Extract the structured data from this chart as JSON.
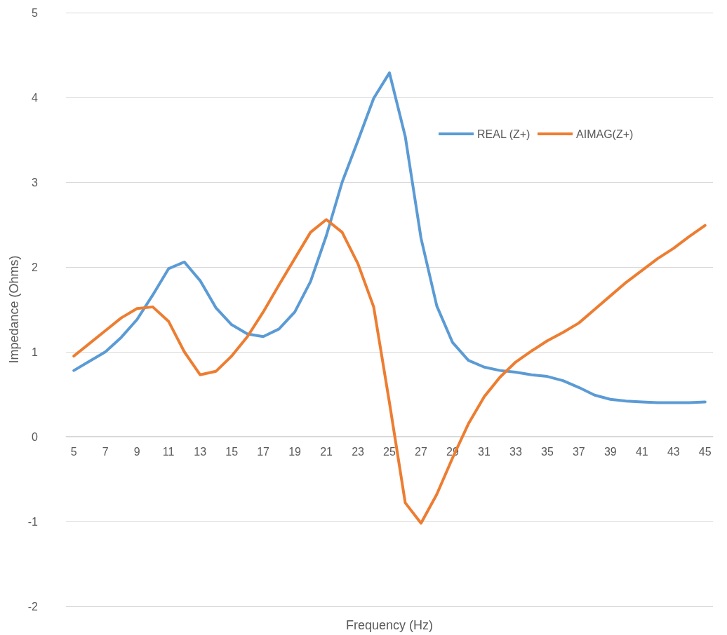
{
  "chart_data": {
    "type": "line",
    "xlabel": "Frequency (Hz)",
    "ylabel": "Impedance (Ohms)",
    "categories": [
      "5",
      null,
      "7",
      null,
      "9",
      null,
      "11",
      null,
      "13",
      null,
      "15",
      null,
      "17",
      null,
      "19",
      null,
      "21",
      null,
      "23",
      null,
      "25",
      null,
      "27",
      null,
      "29",
      null,
      "31",
      null,
      "33",
      null,
      "35",
      null,
      "37",
      null,
      "39",
      null,
      "41",
      null,
      "43",
      null,
      "45"
    ],
    "series": [
      {
        "name": "REAL (Z+)",
        "color": "#5b9bd5",
        "values": [
          0.78,
          0.89,
          1.0,
          1.17,
          1.38,
          1.67,
          1.98,
          2.06,
          1.84,
          1.52,
          1.32,
          1.21,
          1.18,
          1.27,
          1.47,
          1.83,
          2.37,
          3.0,
          3.49,
          3.99,
          4.29,
          3.54,
          2.34,
          1.54,
          1.11,
          0.9,
          0.82,
          0.78,
          0.76,
          0.73,
          0.71,
          0.66,
          0.58,
          0.49,
          0.44,
          0.42,
          0.41,
          0.4,
          0.4,
          0.4,
          0.41
        ]
      },
      {
        "name": "AIMAG(Z+)",
        "color": "#ed7d31",
        "values": [
          0.95,
          1.1,
          1.25,
          1.4,
          1.51,
          1.53,
          1.36,
          1.0,
          0.73,
          0.77,
          0.95,
          1.18,
          1.47,
          1.79,
          2.1,
          2.41,
          2.56,
          2.41,
          2.04,
          1.53,
          0.4,
          -0.78,
          -1.02,
          -0.68,
          -0.25,
          0.15,
          0.47,
          0.7,
          0.88,
          1.01,
          1.13,
          1.23,
          1.34,
          1.5,
          1.66,
          1.82,
          1.96,
          2.1,
          2.22,
          2.36,
          2.49
        ]
      }
    ],
    "ylim": [
      -2,
      5
    ],
    "yticks": [
      -2,
      -1,
      0,
      1,
      2,
      3,
      4,
      5
    ],
    "grid": "y",
    "legend": "top right",
    "marker": "none",
    "line_style": "solid"
  }
}
